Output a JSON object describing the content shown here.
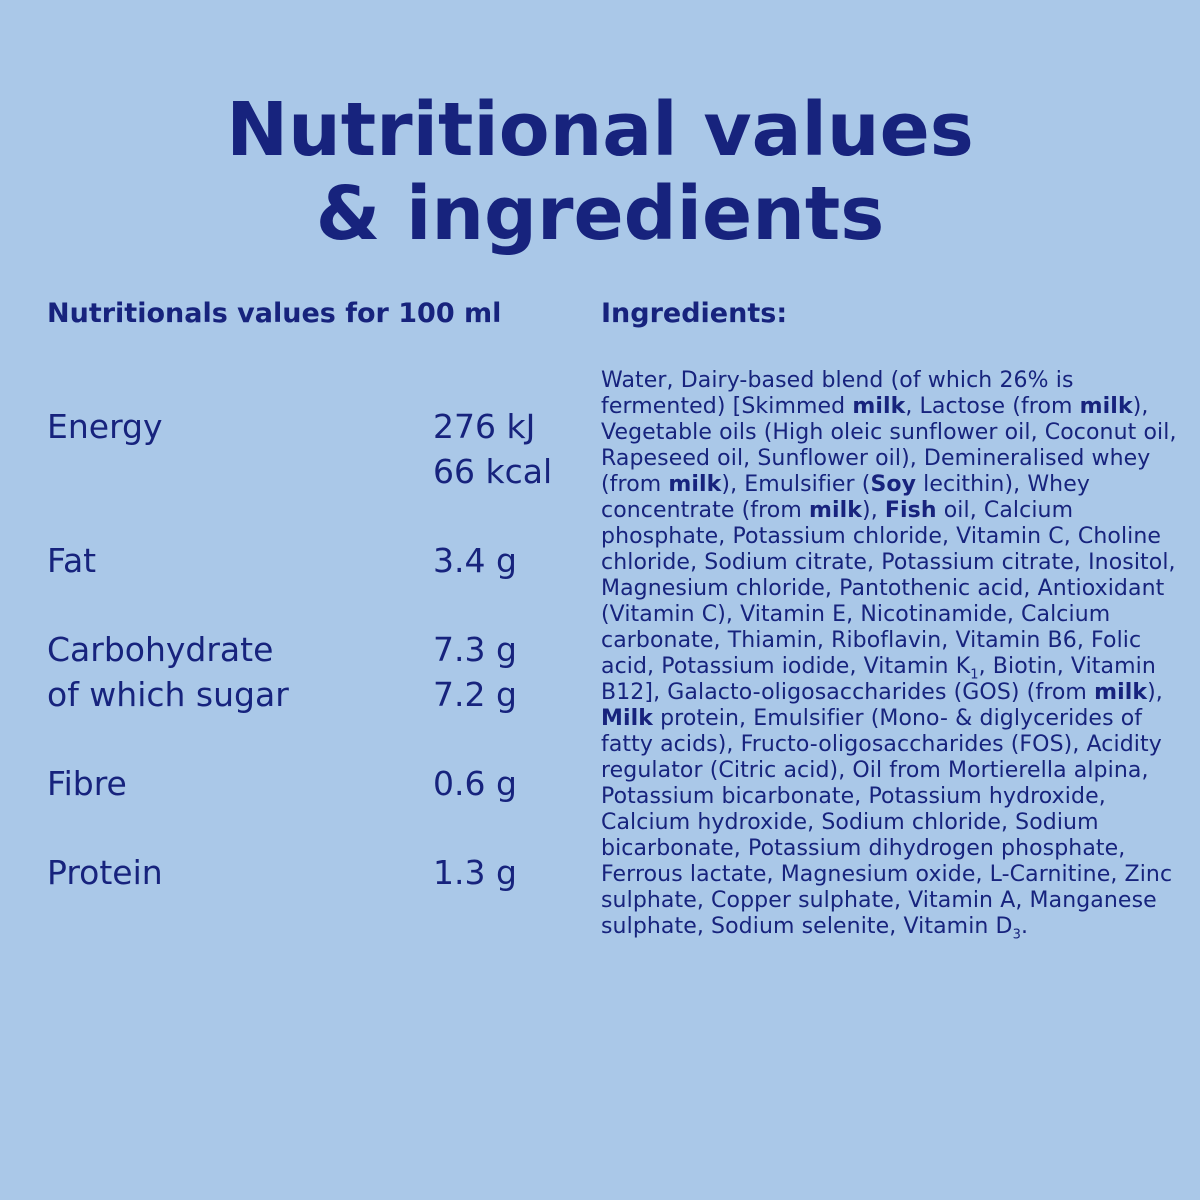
{
  "title": {
    "line1": "Nutritional values",
    "line2": "& ingredients"
  },
  "nutrition": {
    "heading": "Nutritionals values for 100 ml",
    "groups": [
      {
        "lines": [
          {
            "label": "Energy",
            "value": "276 kJ"
          },
          {
            "value": "66 kcal"
          }
        ]
      },
      {
        "lines": [
          {
            "label": "Fat",
            "value": "3.4 g"
          }
        ]
      },
      {
        "lines": [
          {
            "label": "Carbohydrate",
            "value": "7.3 g"
          },
          {
            "label": "of which sugar",
            "value": "7.2 g"
          }
        ]
      },
      {
        "lines": [
          {
            "label": "Fibre",
            "value": "0.6 g"
          }
        ]
      },
      {
        "lines": [
          {
            "label": "Protein",
            "value": "1.3 g"
          }
        ]
      }
    ]
  },
  "ingredients": {
    "heading": "Ingredients:",
    "runs": [
      {
        "text": "Water, Dairy-based blend (of which 26% is fermented) [Skimmed "
      },
      {
        "text": "milk",
        "style": "bold"
      },
      {
        "text": ", Lactose (from "
      },
      {
        "text": "milk",
        "style": "bold"
      },
      {
        "text": "), Vegetable oils (High oleic sunflower oil, Coconut oil, Rapeseed oil, Sunflower oil), Demineralised whey (from "
      },
      {
        "text": "milk",
        "style": "bold"
      },
      {
        "text": "), Emulsifier ("
      },
      {
        "text": "Soy",
        "style": "bold"
      },
      {
        "text": " lecithin), Whey concentrate (from "
      },
      {
        "text": "milk",
        "style": "bold"
      },
      {
        "text": "), "
      },
      {
        "text": "Fish",
        "style": "bold"
      },
      {
        "text": " oil, Calcium phosphate, Potassium chloride, Vitamin C, Choline chloride, Sodium citrate, Potassium citrate, Inositol, Magnesium chloride, Pantothenic acid, Antioxidant (Vitamin C), Vitamin E, Nicotinamide, Calcium carbonate, Thiamin, Riboflavin, Vitamin B6, Folic acid, Potassium iodide, Vitamin K"
      },
      {
        "text": "1",
        "style": "sub"
      },
      {
        "text": ", Biotin, Vitamin B12], Galacto-oligosaccharides (GOS) (from "
      },
      {
        "text": "milk",
        "style": "bold"
      },
      {
        "text": "), "
      },
      {
        "text": "Milk",
        "style": "bold"
      },
      {
        "text": " protein, Emulsifier (Mono- & diglycerides of fatty acids), Fructo-oligosaccharides (FOS), Acidity regulator (Citric acid), Oil from Mortierella alpina, Potassium bicarbonate, Potassium hydroxide, Calcium hydroxide, Sodium chloride, Sodium bicarbonate, Potassium dihydrogen phosphate, Ferrous lactate, Magnesium oxide, L-Carnitine, Zinc sulphate, Copper sulphate, Vitamin A, Manganese sulphate, Sodium selenite, Vitamin D"
      },
      {
        "text": "3",
        "style": "sub"
      },
      {
        "text": "."
      }
    ]
  }
}
